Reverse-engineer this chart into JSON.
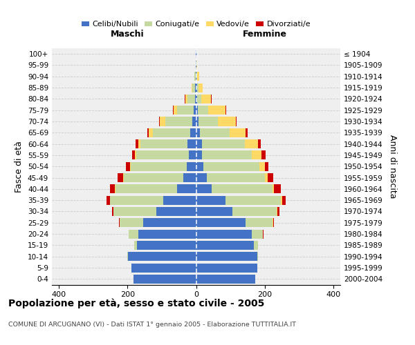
{
  "age_groups": [
    "0-4",
    "5-9",
    "10-14",
    "15-19",
    "20-24",
    "25-29",
    "30-34",
    "35-39",
    "40-44",
    "45-49",
    "50-54",
    "55-59",
    "60-64",
    "65-69",
    "70-74",
    "75-79",
    "80-84",
    "85-89",
    "90-94",
    "95-99",
    "100+"
  ],
  "birth_years": [
    "2000-2004",
    "1995-1999",
    "1990-1994",
    "1985-1989",
    "1980-1984",
    "1975-1979",
    "1970-1974",
    "1965-1969",
    "1960-1964",
    "1955-1959",
    "1950-1954",
    "1945-1949",
    "1940-1944",
    "1935-1939",
    "1930-1934",
    "1925-1929",
    "1920-1924",
    "1915-1919",
    "1910-1914",
    "1905-1909",
    "≤ 1904"
  ],
  "males_celibi": [
    182,
    188,
    198,
    172,
    168,
    155,
    115,
    95,
    55,
    38,
    28,
    22,
    25,
    18,
    12,
    8,
    4,
    3,
    2,
    1,
    1
  ],
  "males_coniugati": [
    0,
    1,
    2,
    8,
    28,
    68,
    125,
    155,
    180,
    172,
    162,
    152,
    138,
    108,
    78,
    48,
    22,
    8,
    3,
    1,
    0
  ],
  "males_vedovi": [
    0,
    0,
    0,
    0,
    0,
    0,
    1,
    1,
    2,
    2,
    3,
    4,
    6,
    12,
    15,
    10,
    6,
    2,
    1,
    0,
    0
  ],
  "males_divorziati": [
    0,
    0,
    0,
    0,
    1,
    2,
    4,
    9,
    14,
    17,
    11,
    9,
    8,
    5,
    3,
    2,
    1,
    1,
    0,
    0,
    0
  ],
  "females_nubili": [
    172,
    178,
    178,
    168,
    162,
    145,
    105,
    85,
    45,
    32,
    22,
    18,
    18,
    12,
    8,
    6,
    4,
    3,
    2,
    1,
    1
  ],
  "females_coniugate": [
    0,
    1,
    3,
    12,
    32,
    78,
    130,
    162,
    178,
    168,
    162,
    145,
    125,
    85,
    55,
    30,
    12,
    4,
    2,
    1,
    0
  ],
  "females_vedove": [
    0,
    0,
    0,
    0,
    1,
    1,
    2,
    3,
    4,
    8,
    16,
    28,
    38,
    48,
    52,
    50,
    28,
    12,
    5,
    2,
    1
  ],
  "females_divorziate": [
    0,
    0,
    0,
    0,
    1,
    3,
    5,
    11,
    19,
    17,
    11,
    11,
    8,
    5,
    3,
    2,
    2,
    1,
    0,
    0,
    0
  ],
  "color_celibi": "#4472c4",
  "color_coniugati": "#c5d9a0",
  "color_vedovi": "#ffd966",
  "color_divorziati": "#cc0000",
  "xlim": 420,
  "title": "Popolazione per età, sesso e stato civile - 2005",
  "subtitle": "COMUNE DI ARCUGNANO (VI) - Dati ISTAT 1° gennaio 2005 - Elaborazione TUTTITALIA.IT",
  "ylabel_left": "Fasce di età",
  "ylabel_right": "Anni di nascita",
  "label_maschi": "Maschi",
  "label_femmine": "Femmine",
  "legend_labels": [
    "Celibi/Nubili",
    "Coniugati/e",
    "Vedovi/e",
    "Divorziati/e"
  ],
  "bg_color": "#efefef"
}
